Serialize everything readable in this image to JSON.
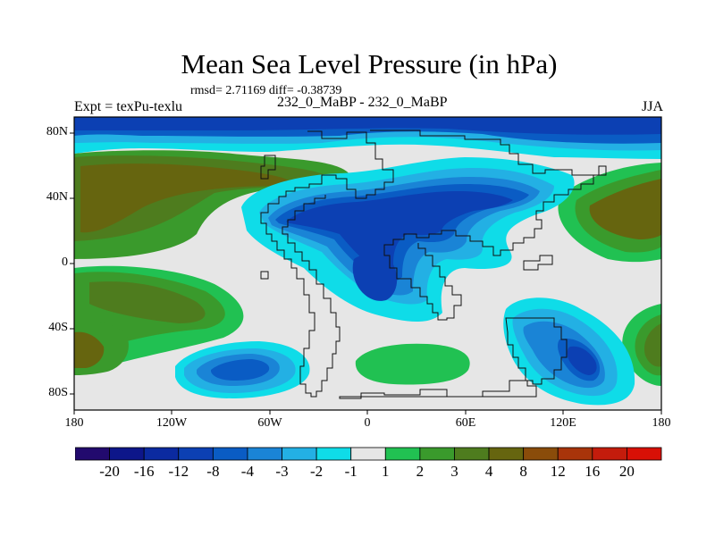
{
  "title": "Mean Sea Level Pressure (in hPa)",
  "stats_line": "rmsd= 2.71169 diff= -0.38739",
  "experiment_label": "Expt = texPu-texlu",
  "comparison_label": "232_0_MaBP - 232_0_MaBP",
  "season_label": "JJA",
  "map": {
    "lat_ticks": [
      "80N",
      "40N",
      "0",
      "40S",
      "80S"
    ],
    "lon_ticks": [
      "180",
      "120W",
      "60W",
      "0",
      "60E",
      "120E",
      "180"
    ]
  },
  "colorbar": {
    "colors": [
      "#220a6e",
      "#0d168a",
      "#0b2aa0",
      "#0c40b3",
      "#0a5cc4",
      "#1a84d6",
      "#23b0e4",
      "#0fdce8",
      "#e6e6e6",
      "#21c152",
      "#3a9a2c",
      "#4e7c1e",
      "#66650f",
      "#8a4c0a",
      "#a8340a",
      "#c41c0c",
      "#d81006"
    ],
    "labels": [
      "-20",
      "-16",
      "-12",
      "-8",
      "-4",
      "-3",
      "-2",
      "-1",
      "1",
      "2",
      "3",
      "4",
      "8",
      "12",
      "16",
      "20"
    ]
  }
}
